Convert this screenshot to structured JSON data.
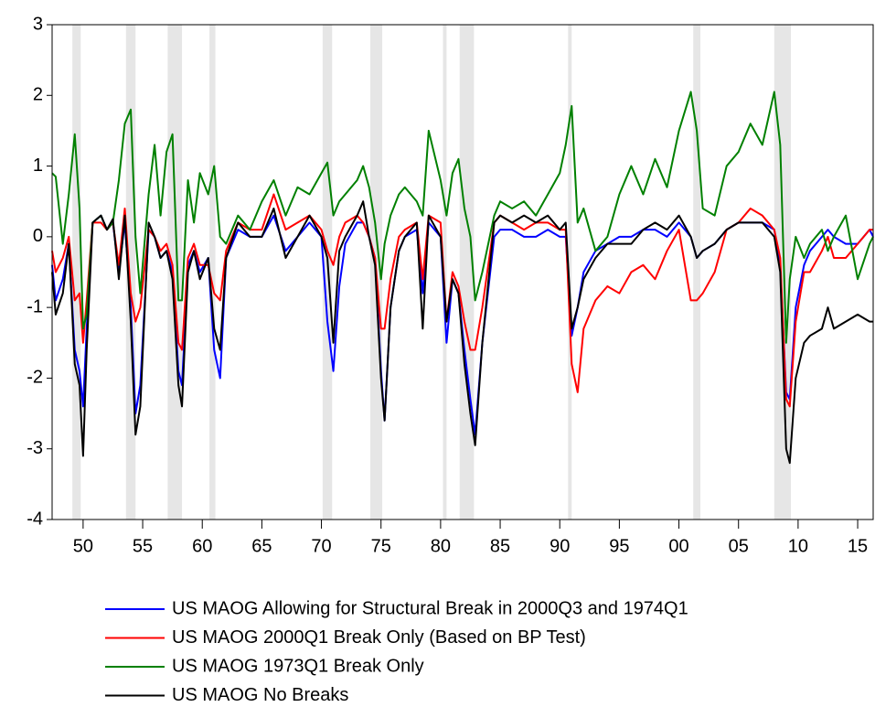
{
  "chart_data": {
    "type": "line",
    "x": [
      1947.4,
      1947.7,
      1948.3,
      1948.8,
      1949.3,
      1949.7,
      1950.0,
      1950.3,
      1950.8,
      1951.5,
      1952.0,
      1952.5,
      1953.0,
      1953.5,
      1954.0,
      1954.4,
      1954.8,
      1955.5,
      1956.0,
      1956.5,
      1957.0,
      1957.5,
      1958.0,
      1958.3,
      1958.8,
      1959.3,
      1959.8,
      1960.5,
      1961.0,
      1961.5,
      1962,
      1963,
      1964,
      1965,
      1966,
      1967,
      1968,
      1969,
      1970,
      1970.5,
      1971,
      1971.5,
      1972,
      1973,
      1973.5,
      1974,
      1974.5,
      1975,
      1975.3,
      1975.8,
      1976.5,
      1977,
      1978,
      1978.5,
      1979,
      1980,
      1980.5,
      1981,
      1981.5,
      1982,
      1982.5,
      1982.9,
      1983.5,
      1984.5,
      1985,
      1986,
      1987,
      1988,
      1989,
      1990,
      1990.5,
      1991,
      1991.5,
      1992,
      1993,
      1994,
      1995,
      1996,
      1997,
      1998,
      1999,
      2000,
      2001,
      2001.5,
      2002,
      2003,
      2004,
      2005,
      2006,
      2007,
      2008,
      2008.5,
      2009,
      2009.3,
      2009.8,
      2010.5,
      2011,
      2012,
      2012.5,
      2013,
      2014,
      2015,
      2016,
      2016.3
    ],
    "series": [
      {
        "name": "US MAOG Allowing for Structural Break in 2000Q3 and 1974Q1",
        "color": "#0000ff",
        "values": [
          -0.4,
          -0.9,
          -0.6,
          -0.1,
          -1.6,
          -1.9,
          -2.4,
          -1.3,
          0.2,
          0.3,
          0.1,
          0.2,
          -0.5,
          0.2,
          -1.0,
          -2.5,
          -2.1,
          0.1,
          0.0,
          -0.3,
          -0.2,
          -0.5,
          -1.9,
          -2.1,
          -0.4,
          -0.2,
          -0.5,
          -0.3,
          -1.6,
          -2.0,
          -0.3,
          0.1,
          0.0,
          0.0,
          0.3,
          -0.2,
          0.0,
          0.2,
          0.0,
          -1.2,
          -1.9,
          -0.7,
          -0.1,
          0.2,
          0.2,
          0.0,
          -0.3,
          -1.9,
          -2.6,
          -1.0,
          -0.2,
          0.0,
          0.1,
          -0.8,
          0.2,
          0.0,
          -1.5,
          -0.6,
          -0.8,
          -1.6,
          -2.3,
          -2.8,
          -1.5,
          0.0,
          0.1,
          0.1,
          0.0,
          0.0,
          0.1,
          0.0,
          0.0,
          -1.4,
          -1.0,
          -0.5,
          -0.2,
          -0.1,
          0.0,
          0.0,
          0.1,
          0.1,
          0.0,
          0.2,
          0.0,
          -0.3,
          -0.2,
          -0.1,
          0.1,
          0.2,
          0.2,
          0.2,
          0.1,
          -0.4,
          -2.2,
          -2.3,
          -1.0,
          -0.4,
          -0.2,
          0.0,
          0.1,
          0.0,
          -0.1,
          -0.1,
          0.1,
          0.0
        ]
      },
      {
        "name": "US MAOG 2000Q1 Break Only (Based on BP Test)",
        "color": "#ff0000",
        "values": [
          -0.2,
          -0.5,
          -0.3,
          0.0,
          -0.9,
          -0.8,
          -1.5,
          -0.9,
          0.2,
          0.2,
          0.1,
          0.2,
          -0.4,
          0.4,
          -0.8,
          -1.2,
          -1.0,
          0.1,
          0.0,
          -0.2,
          -0.1,
          -0.4,
          -1.5,
          -1.6,
          -0.3,
          -0.1,
          -0.4,
          -0.4,
          -0.8,
          -0.9,
          -0.2,
          0.2,
          0.1,
          0.1,
          0.6,
          0.1,
          0.2,
          0.3,
          0.1,
          -0.2,
          -0.4,
          0.0,
          0.2,
          0.3,
          0.2,
          0.0,
          -0.3,
          -1.3,
          -1.3,
          -0.6,
          0.0,
          0.1,
          0.2,
          -0.6,
          0.3,
          0.2,
          -1.2,
          -0.5,
          -0.7,
          -1.2,
          -1.6,
          -1.6,
          -1.0,
          0.2,
          0.3,
          0.2,
          0.1,
          0.2,
          0.2,
          0.1,
          0.1,
          -1.8,
          -2.2,
          -1.3,
          -0.9,
          -0.7,
          -0.8,
          -0.5,
          -0.4,
          -0.6,
          -0.2,
          0.1,
          -0.9,
          -0.9,
          -0.8,
          -0.5,
          0.1,
          0.2,
          0.4,
          0.3,
          0.1,
          -0.3,
          -2.3,
          -2.4,
          -1.2,
          -0.5,
          -0.5,
          -0.2,
          0.0,
          -0.3,
          -0.3,
          -0.1,
          0.1,
          0.1
        ]
      },
      {
        "name": "US MAOG 1973Q1 Break Only",
        "color": "#008000",
        "values": [
          0.9,
          0.85,
          -0.1,
          0.6,
          1.45,
          0.4,
          -1.3,
          -1.1,
          0.2,
          0.3,
          0.1,
          0.2,
          0.8,
          1.6,
          1.8,
          0.0,
          -0.8,
          0.6,
          1.3,
          0.3,
          1.2,
          1.45,
          -0.9,
          -0.9,
          0.8,
          0.2,
          0.9,
          0.6,
          1.0,
          0.0,
          -0.1,
          0.3,
          0.1,
          0.5,
          0.8,
          0.3,
          0.7,
          0.6,
          0.9,
          1.05,
          0.3,
          0.5,
          0.6,
          0.8,
          1.0,
          0.7,
          0.2,
          -0.6,
          -0.1,
          0.3,
          0.6,
          0.7,
          0.5,
          0.3,
          1.5,
          0.8,
          0.3,
          0.9,
          1.1,
          0.4,
          0.0,
          -0.9,
          -0.5,
          0.3,
          0.5,
          0.4,
          0.5,
          0.3,
          0.6,
          0.9,
          1.3,
          1.85,
          0.2,
          0.4,
          -0.2,
          0.0,
          0.6,
          1.0,
          0.6,
          1.1,
          0.7,
          1.5,
          2.05,
          1.5,
          0.4,
          0.3,
          1.0,
          1.2,
          1.6,
          1.3,
          2.05,
          1.3,
          -1.5,
          -0.6,
          0.0,
          -0.3,
          -0.1,
          0.1,
          -0.2,
          0.0,
          0.3,
          -0.6,
          -0.1,
          0.0
        ]
      },
      {
        "name": "US MAOG No Breaks",
        "color": "#000000",
        "values": [
          -0.5,
          -1.1,
          -0.8,
          -0.1,
          -1.8,
          -2.1,
          -3.1,
          -1.6,
          0.2,
          0.3,
          0.1,
          0.25,
          -0.6,
          0.3,
          -1.2,
          -2.8,
          -2.4,
          0.2,
          0.0,
          -0.3,
          -0.2,
          -0.6,
          -2.1,
          -2.4,
          -0.5,
          -0.2,
          -0.6,
          -0.3,
          -1.3,
          -1.6,
          -0.3,
          0.2,
          0.0,
          0.0,
          0.4,
          -0.3,
          0.0,
          0.3,
          0.0,
          -0.3,
          -1.5,
          -0.2,
          0.0,
          0.3,
          0.5,
          0.0,
          -0.4,
          -2.0,
          -2.6,
          -1.0,
          -0.2,
          0.0,
          0.2,
          -1.3,
          0.3,
          0.0,
          -1.2,
          -0.6,
          -0.8,
          -1.8,
          -2.5,
          -2.95,
          -1.5,
          0.2,
          0.3,
          0.2,
          0.3,
          0.2,
          0.3,
          0.1,
          0.2,
          -1.3,
          -1.0,
          -0.6,
          -0.3,
          -0.1,
          -0.1,
          -0.1,
          0.1,
          0.2,
          0.1,
          0.3,
          0.0,
          -0.3,
          -0.2,
          -0.1,
          0.1,
          0.2,
          0.2,
          0.2,
          0.0,
          -0.5,
          -3.0,
          -3.2,
          -2.0,
          -1.5,
          -1.4,
          -1.3,
          -1.0,
          -1.3,
          -1.2,
          -1.1,
          -1.2,
          -1.2
        ]
      }
    ],
    "shaded_periods": [
      [
        1949.1,
        1949.8
      ],
      [
        1953.6,
        1954.4
      ],
      [
        1957.1,
        1958.3
      ],
      [
        1960.6,
        1961.1
      ],
      [
        1970.1,
        1970.9
      ],
      [
        1974.1,
        1975.1
      ],
      [
        1980.2,
        1980.5
      ],
      [
        1981.6,
        1982.8
      ],
      [
        1990.7,
        1991.0
      ],
      [
        2001.2,
        2001.8
      ],
      [
        2008.0,
        2009.4
      ]
    ],
    "shade_color": "#e6e6e6",
    "xlim": [
      1947.4,
      2016.3
    ],
    "xticks": [
      {
        "value": 1950,
        "label": "50"
      },
      {
        "value": 1955,
        "label": "55"
      },
      {
        "value": 1960,
        "label": "60"
      },
      {
        "value": 1965,
        "label": "65"
      },
      {
        "value": 1970,
        "label": "70"
      },
      {
        "value": 1975,
        "label": "75"
      },
      {
        "value": 1980,
        "label": "80"
      },
      {
        "value": 1985,
        "label": "85"
      },
      {
        "value": 1990,
        "label": "90"
      },
      {
        "value": 1995,
        "label": "95"
      },
      {
        "value": 2000,
        "label": "00"
      },
      {
        "value": 2005,
        "label": "05"
      },
      {
        "value": 2010,
        "label": "10"
      },
      {
        "value": 2015,
        "label": "15"
      }
    ],
    "ylim": [
      -4,
      3
    ],
    "yticks": [
      -4,
      -3,
      -2,
      -1,
      0,
      1,
      2,
      3
    ],
    "legend": "bottom"
  }
}
